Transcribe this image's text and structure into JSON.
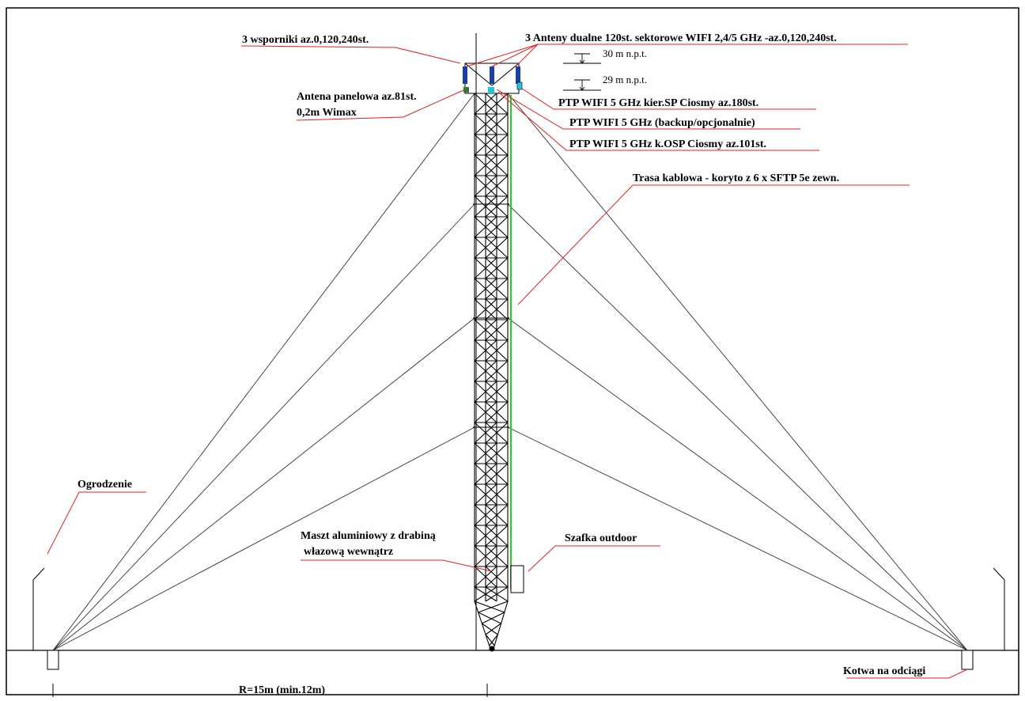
{
  "labels": {
    "brackets": "3 wsporniki az.0,120,240st.",
    "dual_antennas": "3 Anteny dualne 120st. sektorowe WIFI 2,4/5 GHz -az.0,120,240st.",
    "height_30": "30 m n.p.t.",
    "height_29": "29 m n.p.t.",
    "panel_antenna_line1": "Antena panelowa az.81st.",
    "panel_antenna_line2": "0,2m Wimax",
    "ptp_sp": "PTP WIFI 5 GHz kier.SP Ciosmy az.180st.",
    "ptp_backup": "PTP WIFI 5 GHz (backup/opcjonalnie)",
    "ptp_osp": "PTP WIFI 5 GHz k.OSP Ciosmy az.101st.",
    "cable_route": "Trasa kablowa - koryto z 6 x SFTP 5e zewn.",
    "fence": "Ogrodzenie",
    "mast_line1": "Maszt aluminiowy z drabiną",
    "mast_line2": "włazową wewnątrz",
    "cabinet": "Szafka outdoor",
    "anchor": "Kotwa na odciągi",
    "radius": "R=15m (min.12m)"
  },
  "colors": {
    "leader": "#e02020",
    "cable": "#1fd11f",
    "antenna": "#1a3fa8",
    "panel": "#2f7d2f",
    "ptp": "#20c8d8"
  }
}
